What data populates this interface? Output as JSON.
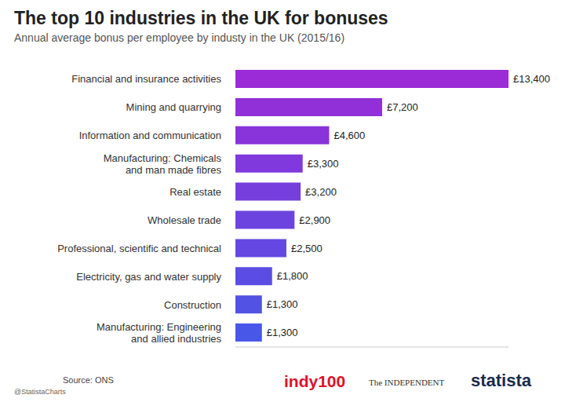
{
  "chart_data": {
    "type": "bar",
    "orientation": "horizontal",
    "title": "The top 10 industries in the UK for bonuses",
    "subtitle": "Annual average bonus per employee by industy in the UK (2015/16)",
    "categories": [
      "Financial and insurance activities",
      "Mining and quarrying",
      "Information and communication",
      "Manufacturing: Chemicals and man made fibres",
      "Real estate",
      "Wholesale trade",
      "Professional, scientific and technical",
      "Electricity, gas and water supply",
      "Construction",
      "Manufacturing: Engineering and allied industries"
    ],
    "values": [
      13400,
      7200,
      4600,
      3300,
      3200,
      2900,
      2500,
      1800,
      1300,
      1300
    ],
    "value_labels": [
      "£13,400",
      "£7,200",
      "£4,600",
      "£3,300",
      "£3,200",
      "£2,900",
      "£2,500",
      "£1,800",
      "£1,300",
      "£1,300"
    ],
    "data_labels": true,
    "colors": [
      "#9a2bd6",
      "#912fd8",
      "#8834da",
      "#7f39dc",
      "#763edd",
      "#6d43df",
      "#6448e1",
      "#5b4de3",
      "#5252e5",
      "#4957e8"
    ],
    "xlim": [
      0,
      13400
    ],
    "tick_labels": false,
    "grid": false,
    "annotations": [
      "@StatistaCharts",
      "Source: ONS",
      "indy100",
      "The INDEPENDENT",
      "statista"
    ]
  }
}
